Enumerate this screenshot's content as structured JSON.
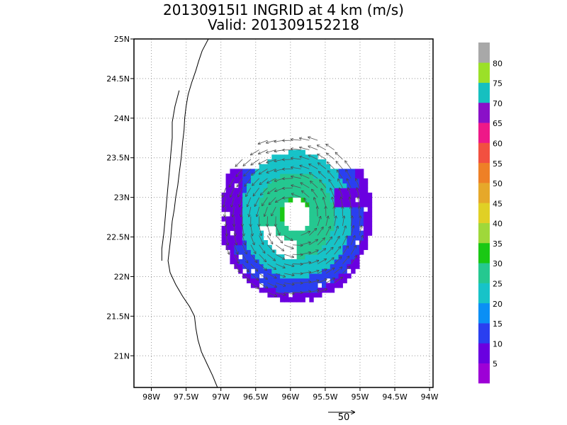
{
  "title": {
    "line1": "20130915I1 INGRID at 4 km (m/s)",
    "line2": "Valid: 201309152218"
  },
  "map": {
    "lon_range": [
      -98.25,
      -93.95
    ],
    "lat_range": [
      20.6,
      25.0
    ],
    "x_ticks": [
      {
        "lon": -98.0,
        "label": "98W"
      },
      {
        "lon": -97.5,
        "label": "97.5W"
      },
      {
        "lon": -97.0,
        "label": "97W"
      },
      {
        "lon": -96.5,
        "label": "96.5W"
      },
      {
        "lon": -96.0,
        "label": "96W"
      },
      {
        "lon": -95.5,
        "label": "95.5W"
      },
      {
        "lon": -95.0,
        "label": "95W"
      },
      {
        "lon": -94.5,
        "label": "94.5W"
      },
      {
        "lon": -94.0,
        "label": "94W"
      }
    ],
    "y_ticks": [
      {
        "lat": 25.0,
        "label": "25N"
      },
      {
        "lat": 24.5,
        "label": "24.5N"
      },
      {
        "lat": 24.0,
        "label": "24N"
      },
      {
        "lat": 23.5,
        "label": "23.5N"
      },
      {
        "lat": 23.0,
        "label": "23N"
      },
      {
        "lat": 22.5,
        "label": "22.5N"
      },
      {
        "lat": 22.0,
        "label": "22N"
      },
      {
        "lat": 21.5,
        "label": "21.5N"
      },
      {
        "lat": 21.0,
        "label": "21N"
      }
    ],
    "grid": "dotted",
    "storm_center": [
      -95.95,
      22.75
    ],
    "eye_radius_deg": 0.2,
    "outer_radius_deg": 1.1,
    "coastline": [
      [
        -97.18,
        25.0
      ],
      [
        -97.27,
        24.85
      ],
      [
        -97.32,
        24.72
      ],
      [
        -97.36,
        24.6
      ],
      [
        -97.42,
        24.45
      ],
      [
        -97.47,
        24.3
      ],
      [
        -97.5,
        24.15
      ],
      [
        -97.52,
        24.0
      ],
      [
        -97.53,
        23.85
      ],
      [
        -97.55,
        23.7
      ],
      [
        -97.57,
        23.5
      ],
      [
        -97.6,
        23.3
      ],
      [
        -97.62,
        23.15
      ],
      [
        -97.65,
        23.0
      ],
      [
        -97.67,
        22.85
      ],
      [
        -97.7,
        22.7
      ],
      [
        -97.72,
        22.5
      ],
      [
        -97.74,
        22.35
      ],
      [
        -97.76,
        22.2
      ],
      [
        -97.73,
        22.05
      ],
      [
        -97.65,
        21.9
      ],
      [
        -97.55,
        21.75
      ],
      [
        -97.45,
        21.62
      ],
      [
        -97.38,
        21.5
      ],
      [
        -97.36,
        21.35
      ],
      [
        -97.33,
        21.2
      ],
      [
        -97.28,
        21.05
      ],
      [
        -97.2,
        20.9
      ],
      [
        -97.12,
        20.75
      ],
      [
        -97.05,
        20.6
      ]
    ],
    "lagoon": [
      [
        -97.6,
        24.35
      ],
      [
        -97.66,
        24.15
      ],
      [
        -97.7,
        23.95
      ],
      [
        -97.7,
        23.75
      ],
      [
        -97.72,
        23.55
      ],
      [
        -97.74,
        23.35
      ],
      [
        -97.76,
        23.15
      ],
      [
        -97.78,
        22.95
      ],
      [
        -97.8,
        22.75
      ],
      [
        -97.82,
        22.55
      ],
      [
        -97.85,
        22.35
      ],
      [
        -97.85,
        22.2
      ]
    ]
  },
  "colorbar": {
    "labels": [
      "5",
      "10",
      "15",
      "20",
      "25",
      "30",
      "35",
      "40",
      "45",
      "50",
      "55",
      "60",
      "65",
      "70",
      "75",
      "80"
    ],
    "colors": [
      "#9d00d6",
      "#6a00e0",
      "#2a3ff0",
      "#0a8ff5",
      "#17c3c8",
      "#25c890",
      "#1ac814",
      "#9fd83a",
      "#e0d025",
      "#e6a82a",
      "#ee8026",
      "#f25040",
      "#ee1888",
      "#8a10c8",
      "#16c0c0",
      "#9be028",
      "#a8a8a8"
    ]
  },
  "vector_scale": {
    "label": "50"
  }
}
